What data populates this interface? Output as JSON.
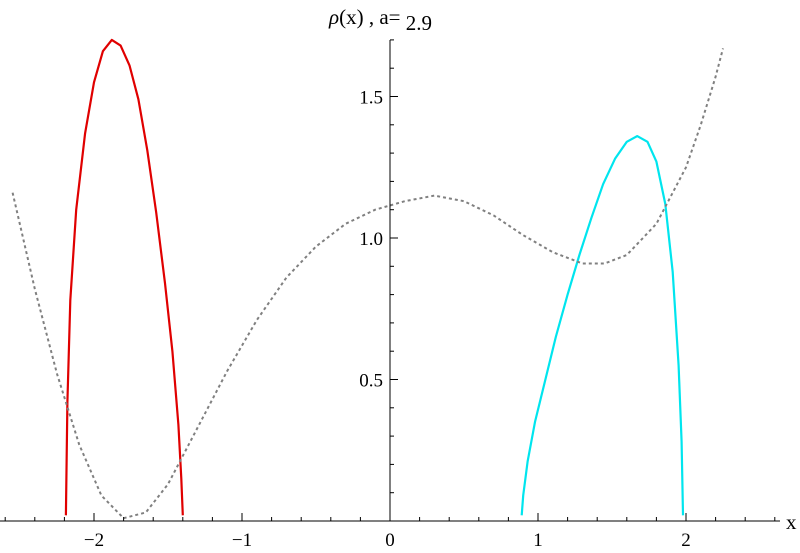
{
  "chart_data": {
    "type": "line",
    "title": {
      "prefix": "ρ",
      "arg": "(x) , a= ",
      "value": "2.9"
    },
    "xlabel": "x",
    "ylabel": "",
    "xlim": [
      -2.6,
      2.6
    ],
    "ylim": [
      0,
      1.7
    ],
    "x_ticks": [
      {
        "value": -2,
        "label": "−2"
      },
      {
        "value": -1,
        "label": "−1"
      },
      {
        "value": 0,
        "label": "0"
      },
      {
        "value": 1,
        "label": "1"
      },
      {
        "value": 2,
        "label": "2"
      }
    ],
    "y_ticks": [
      {
        "value": 0.5,
        "label": "0.5"
      },
      {
        "value": 1.0,
        "label": "1.0"
      },
      {
        "value": 1.5,
        "label": "1.5"
      }
    ],
    "grid": false,
    "series": [
      {
        "color": "#e00000",
        "style": "solid",
        "points": [
          [
            -2.19,
            0.02
          ],
          [
            -2.18,
            0.42
          ],
          [
            -2.16,
            0.78
          ],
          [
            -2.12,
            1.1
          ],
          [
            -2.06,
            1.37
          ],
          [
            -2.0,
            1.55
          ],
          [
            -1.94,
            1.66
          ],
          [
            -1.88,
            1.7
          ],
          [
            -1.82,
            1.68
          ],
          [
            -1.76,
            1.61
          ],
          [
            -1.7,
            1.49
          ],
          [
            -1.64,
            1.31
          ],
          [
            -1.58,
            1.09
          ],
          [
            -1.52,
            0.84
          ],
          [
            -1.47,
            0.6
          ],
          [
            -1.43,
            0.34
          ],
          [
            -1.41,
            0.15
          ],
          [
            -1.4,
            0.02
          ]
        ]
      },
      {
        "color": "#00e5ee",
        "style": "solid",
        "points": [
          [
            0.89,
            0.02
          ],
          [
            0.9,
            0.09
          ],
          [
            0.93,
            0.21
          ],
          [
            0.98,
            0.35
          ],
          [
            1.05,
            0.5
          ],
          [
            1.12,
            0.65
          ],
          [
            1.2,
            0.8
          ],
          [
            1.28,
            0.94
          ],
          [
            1.36,
            1.07
          ],
          [
            1.44,
            1.19
          ],
          [
            1.52,
            1.28
          ],
          [
            1.6,
            1.34
          ],
          [
            1.67,
            1.36
          ],
          [
            1.74,
            1.34
          ],
          [
            1.8,
            1.27
          ],
          [
            1.86,
            1.12
          ],
          [
            1.91,
            0.88
          ],
          [
            1.95,
            0.55
          ],
          [
            1.97,
            0.28
          ],
          [
            1.98,
            0.02
          ]
        ]
      },
      {
        "color": "#808080",
        "style": "dashed",
        "points": [
          [
            -2.55,
            1.16
          ],
          [
            -2.4,
            0.82
          ],
          [
            -2.25,
            0.52
          ],
          [
            -2.1,
            0.27
          ],
          [
            -1.95,
            0.09
          ],
          [
            -1.8,
            0.01
          ],
          [
            -1.65,
            0.03
          ],
          [
            -1.5,
            0.13
          ],
          [
            -1.3,
            0.33
          ],
          [
            -1.1,
            0.53
          ],
          [
            -0.9,
            0.71
          ],
          [
            -0.7,
            0.86
          ],
          [
            -0.5,
            0.97
          ],
          [
            -0.3,
            1.05
          ],
          [
            -0.1,
            1.1
          ],
          [
            0.1,
            1.13
          ],
          [
            0.3,
            1.15
          ],
          [
            0.5,
            1.13
          ],
          [
            0.7,
            1.08
          ],
          [
            0.9,
            1.01
          ],
          [
            1.1,
            0.95
          ],
          [
            1.3,
            0.91
          ],
          [
            1.45,
            0.91
          ],
          [
            1.6,
            0.94
          ],
          [
            1.8,
            1.05
          ],
          [
            2.0,
            1.25
          ],
          [
            2.1,
            1.4
          ],
          [
            2.2,
            1.57
          ],
          [
            2.25,
            1.67
          ]
        ]
      }
    ]
  }
}
